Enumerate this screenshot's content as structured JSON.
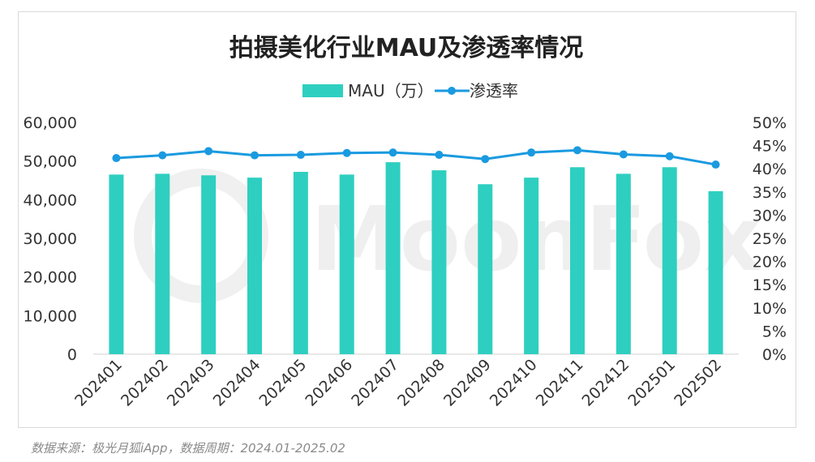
{
  "chart_data": {
    "type": "bar",
    "title": "拍摄美化行业MAU及渗透率情况",
    "categories": [
      "202401",
      "202402",
      "202403",
      "202404",
      "202405",
      "202406",
      "202407",
      "202408",
      "202409",
      "202410",
      "202411",
      "202412",
      "202501",
      "202502"
    ],
    "series": [
      {
        "name": "MAU（万）",
        "type": "bar",
        "axis": "left",
        "values": [
          46500,
          46700,
          46300,
          45700,
          47200,
          46500,
          49700,
          47600,
          44000,
          45700,
          48400,
          46700,
          48400,
          42200
        ]
      },
      {
        "name": "渗透率",
        "type": "line",
        "axis": "right",
        "values": [
          42.3,
          42.9,
          43.8,
          42.9,
          43.0,
          43.4,
          43.5,
          43.0,
          42.1,
          43.5,
          44.0,
          43.1,
          42.7,
          40.9
        ]
      }
    ],
    "y_left": {
      "min": 0,
      "max": 60000,
      "ticks": [
        "0",
        "10,000",
        "20,000",
        "30,000",
        "40,000",
        "50,000",
        "60,000"
      ]
    },
    "y_right": {
      "min": 0,
      "max": 50,
      "ticks": [
        "0%",
        "5%",
        "10%",
        "15%",
        "20%",
        "25%",
        "30%",
        "35%",
        "40%",
        "45%",
        "50%"
      ]
    },
    "legend_position": "top-center",
    "grid": false,
    "colors": {
      "bar": "#2ecfc0",
      "line": "#1a9ae0"
    }
  },
  "watermark": "MoonFox",
  "source_note": "数据来源：极光月狐iApp，数据周期：2024.01-2025.02"
}
